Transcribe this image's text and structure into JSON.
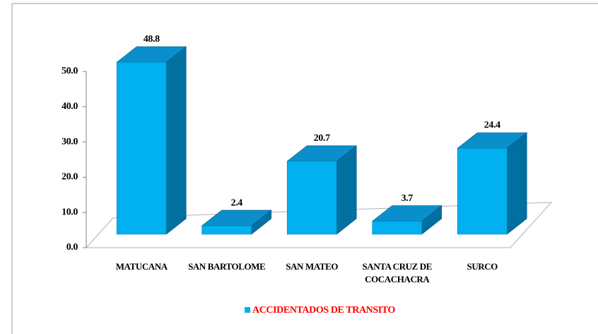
{
  "chart_data": {
    "type": "bar3d",
    "categories": [
      "MATUCANA",
      "SAN BARTOLOME",
      "SAN MATEO",
      "SANTA CRUZ DE COCACHACRA",
      "SURCO"
    ],
    "series": [
      {
        "name": "ACCIDENTADOS DE TRANSITO",
        "color": "#00b0f0",
        "values": [
          48.8,
          2.4,
          20.7,
          3.7,
          24.4
        ]
      }
    ],
    "ylim": [
      0,
      50
    ],
    "yticks": [
      {
        "value": 0,
        "label": "0.0"
      },
      {
        "value": 10,
        "label": "10.0"
      },
      {
        "value": 20,
        "label": "20.0"
      },
      {
        "value": 30,
        "label": "30.0"
      },
      {
        "value": 40,
        "label": "40.0"
      },
      {
        "value": 50,
        "label": "50.0"
      }
    ]
  }
}
